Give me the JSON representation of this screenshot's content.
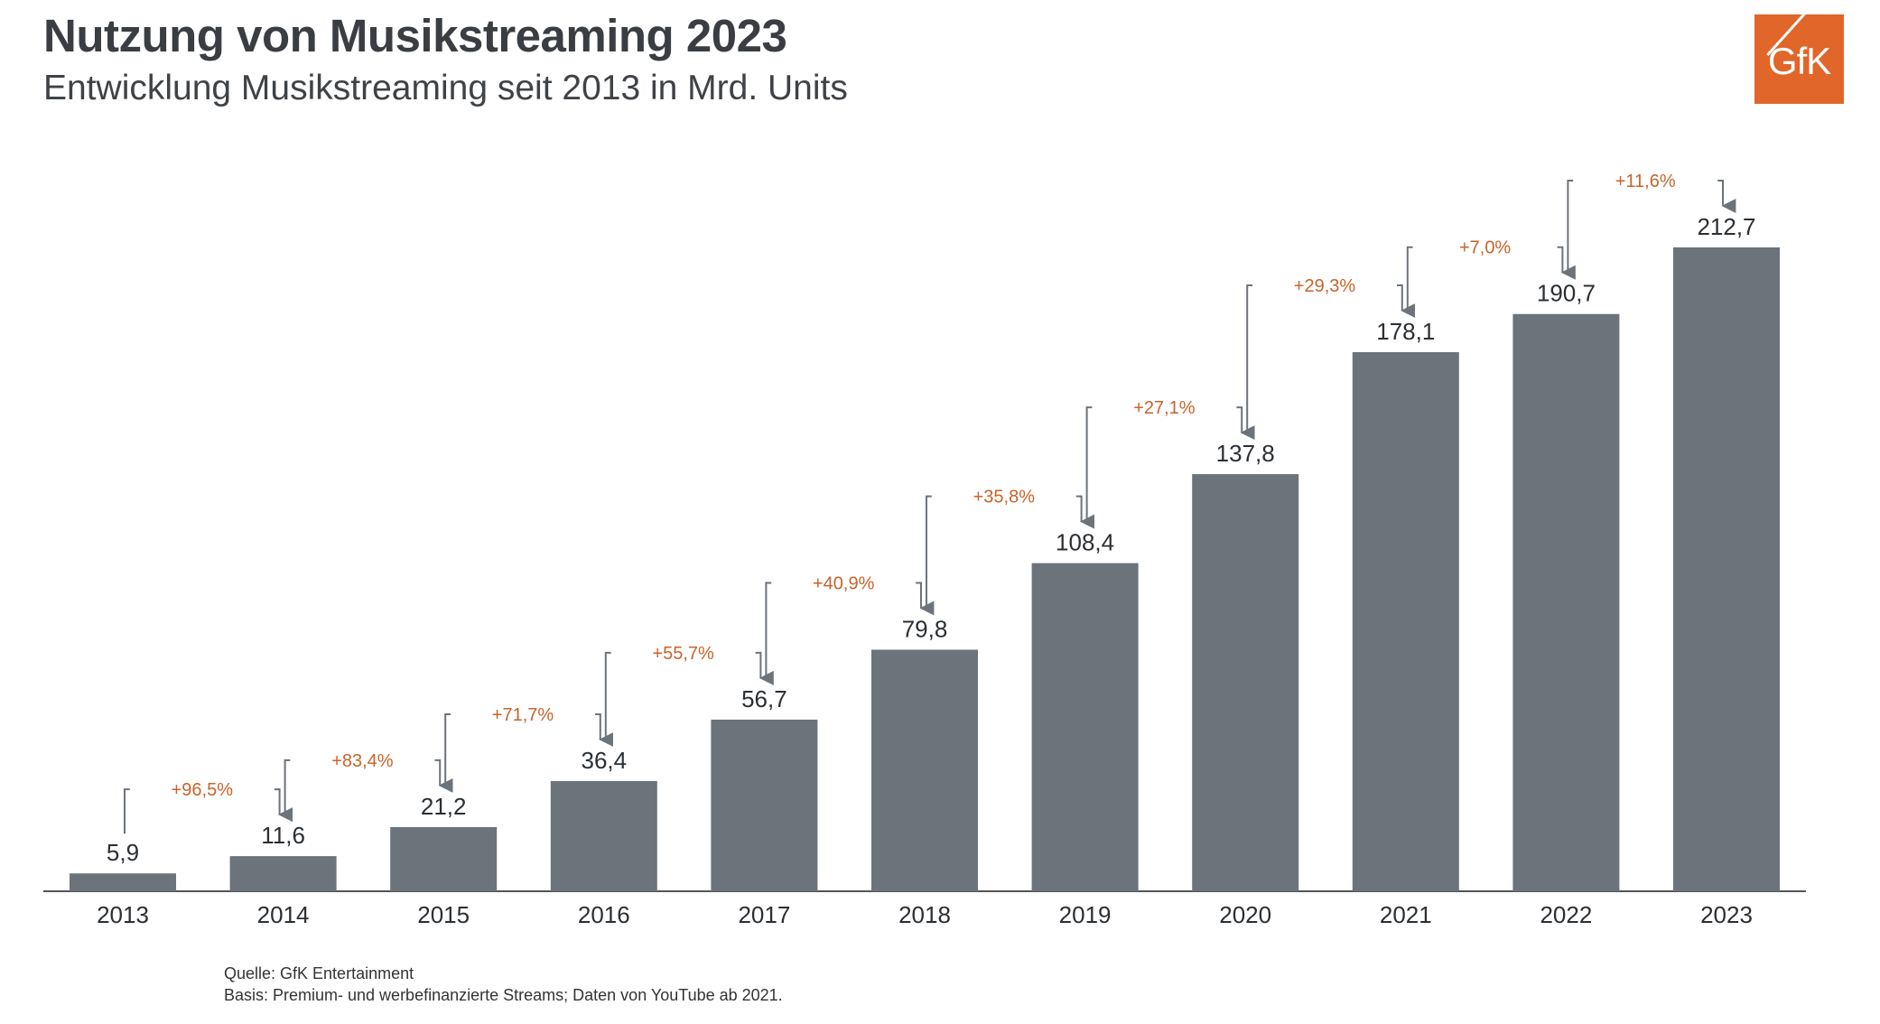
{
  "header": {
    "title": "Nutzung von Musikstreaming 2023",
    "subtitle": "Entwicklung Musikstreaming seit 2013 in Mrd. Units"
  },
  "logo": {
    "text": "GfK",
    "color": "#e0662a"
  },
  "footer": {
    "source": "Quelle: GfK Entertainment",
    "basis": "Basis: Premium- und werbefinanzierte Streams; Daten von YouTube ab 2021."
  },
  "chart_data": {
    "type": "bar",
    "categories": [
      "2013",
      "2014",
      "2015",
      "2016",
      "2017",
      "2018",
      "2019",
      "2020",
      "2021",
      "2022",
      "2023"
    ],
    "values": [
      5.9,
      11.6,
      21.2,
      36.4,
      56.7,
      79.8,
      108.4,
      137.8,
      178.1,
      190.7,
      212.7
    ],
    "value_labels": [
      "5,9",
      "11,6",
      "21,2",
      "36,4",
      "56,7",
      "79,8",
      "108,4",
      "137,8",
      "178,1",
      "190,7",
      "212,7"
    ],
    "growth_labels": [
      "+96,5%",
      "+83,4%",
      "+71,7%",
      "+55,7%",
      "+40,9%",
      "+35,8%",
      "+27,1%",
      "+29,3%",
      "+7,0%",
      "+11,6%"
    ],
    "ylim": [
      0,
      212.7
    ],
    "grid": false,
    "colors": {
      "bar": "#6c737a",
      "growth": "#c9632a",
      "connector": "#6c737a",
      "axis": "#555555"
    }
  }
}
